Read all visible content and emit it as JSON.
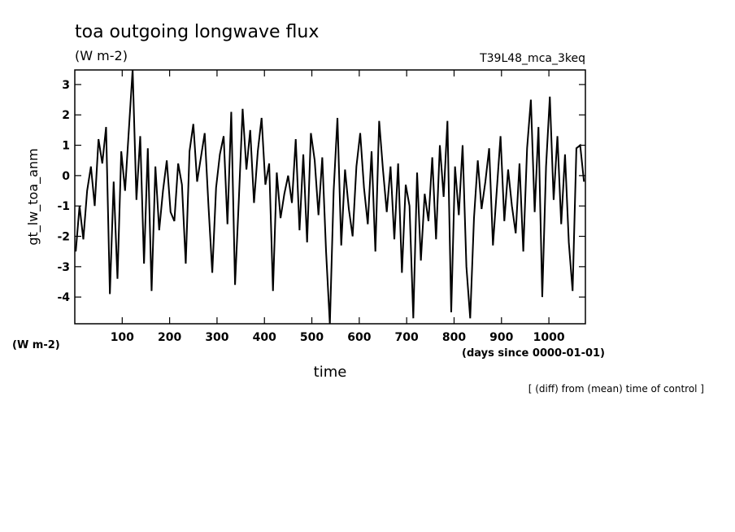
{
  "chart_data": {
    "type": "line",
    "title": "toa outgoing longwave flux",
    "units": "(W m-2)",
    "run_label": "T39L48_mca_3keq",
    "y_label": "gt_lw_toa_anm",
    "y_units": "(W m-2)",
    "x_label": "time",
    "x_units": "(days since 0000-01-01)",
    "footnote": "[ (diff) from (mean) time of control ]",
    "xlim": [
      0,
      1077
    ],
    "ylim": [
      -4.88,
      3.48
    ],
    "xticks": [
      100,
      200,
      300,
      400,
      500,
      600,
      700,
      800,
      900,
      1000
    ],
    "yticks": [
      -4,
      -3,
      -2,
      -1,
      0,
      1,
      2,
      3
    ],
    "grid": false,
    "series": [
      {
        "name": "gt_lw_toa_anm",
        "color": "#000000",
        "x": [
          2,
          10,
          18,
          26,
          34,
          42,
          50,
          58,
          66,
          74,
          82,
          90,
          98,
          106,
          114,
          122,
          130,
          138,
          146,
          154,
          162,
          170,
          178,
          186,
          194,
          202,
          210,
          218,
          226,
          234,
          242,
          250,
          258,
          266,
          274,
          282,
          290,
          298,
          306,
          314,
          322,
          330,
          338,
          346,
          354,
          362,
          370,
          378,
          386,
          394,
          402,
          410,
          418,
          426,
          434,
          442,
          450,
          458,
          466,
          474,
          482,
          490,
          498,
          506,
          514,
          522,
          530,
          538,
          546,
          554,
          562,
          570,
          578,
          586,
          594,
          602,
          610,
          618,
          626,
          634,
          642,
          650,
          658,
          666,
          674,
          682,
          690,
          698,
          706,
          714,
          722,
          730,
          738,
          746,
          754,
          762,
          770,
          778,
          786,
          794,
          802,
          810,
          818,
          826,
          834,
          842,
          850,
          858,
          866,
          874,
          882,
          890,
          898,
          906,
          914,
          922,
          930,
          938,
          946,
          954,
          962,
          970,
          978,
          986,
          994,
          1002,
          1010,
          1018,
          1026,
          1034,
          1042,
          1050,
          1058,
          1066,
          1074
        ],
        "values": [
          -2.5,
          -1.0,
          -2.1,
          -0.5,
          0.3,
          -1.0,
          1.2,
          0.4,
          1.6,
          -3.9,
          -0.2,
          -3.4,
          0.8,
          -0.5,
          1.5,
          3.5,
          -0.8,
          1.3,
          -2.9,
          0.9,
          -3.8,
          0.3,
          -1.8,
          -0.5,
          0.5,
          -1.2,
          -1.5,
          0.4,
          -0.3,
          -2.9,
          0.8,
          1.7,
          -0.2,
          0.6,
          1.4,
          -1.0,
          -3.2,
          -0.4,
          0.7,
          1.3,
          -1.6,
          2.1,
          -3.6,
          -0.8,
          2.2,
          0.2,
          1.5,
          -0.9,
          0.8,
          1.9,
          -0.3,
          0.4,
          -3.8,
          0.1,
          -1.4,
          -0.6,
          0.0,
          -0.9,
          1.2,
          -1.8,
          0.7,
          -2.2,
          1.4,
          0.5,
          -1.3,
          0.6,
          -2.5,
          -4.9,
          -0.5,
          1.9,
          -2.3,
          0.2,
          -1.1,
          -2.0,
          0.3,
          1.4,
          -0.4,
          -1.6,
          0.8,
          -2.5,
          1.8,
          0.2,
          -1.2,
          0.3,
          -2.1,
          0.4,
          -3.2,
          -0.3,
          -1.0,
          -4.7,
          0.1,
          -2.8,
          -0.6,
          -1.5,
          0.6,
          -2.1,
          1.0,
          -0.7,
          1.8,
          -4.5,
          0.3,
          -1.3,
          1.0,
          -3.0,
          -4.7,
          -1.4,
          0.5,
          -1.1,
          -0.2,
          0.9,
          -2.3,
          -0.5,
          1.3,
          -1.5,
          0.2,
          -1.0,
          -1.9,
          0.4,
          -2.5,
          0.9,
          2.5,
          -1.2,
          1.6,
          -4.0,
          0.3,
          2.6,
          -0.8,
          1.3,
          -1.6,
          0.7,
          -2.2,
          -3.8,
          0.9,
          1.0,
          -0.2
        ]
      }
    ]
  }
}
